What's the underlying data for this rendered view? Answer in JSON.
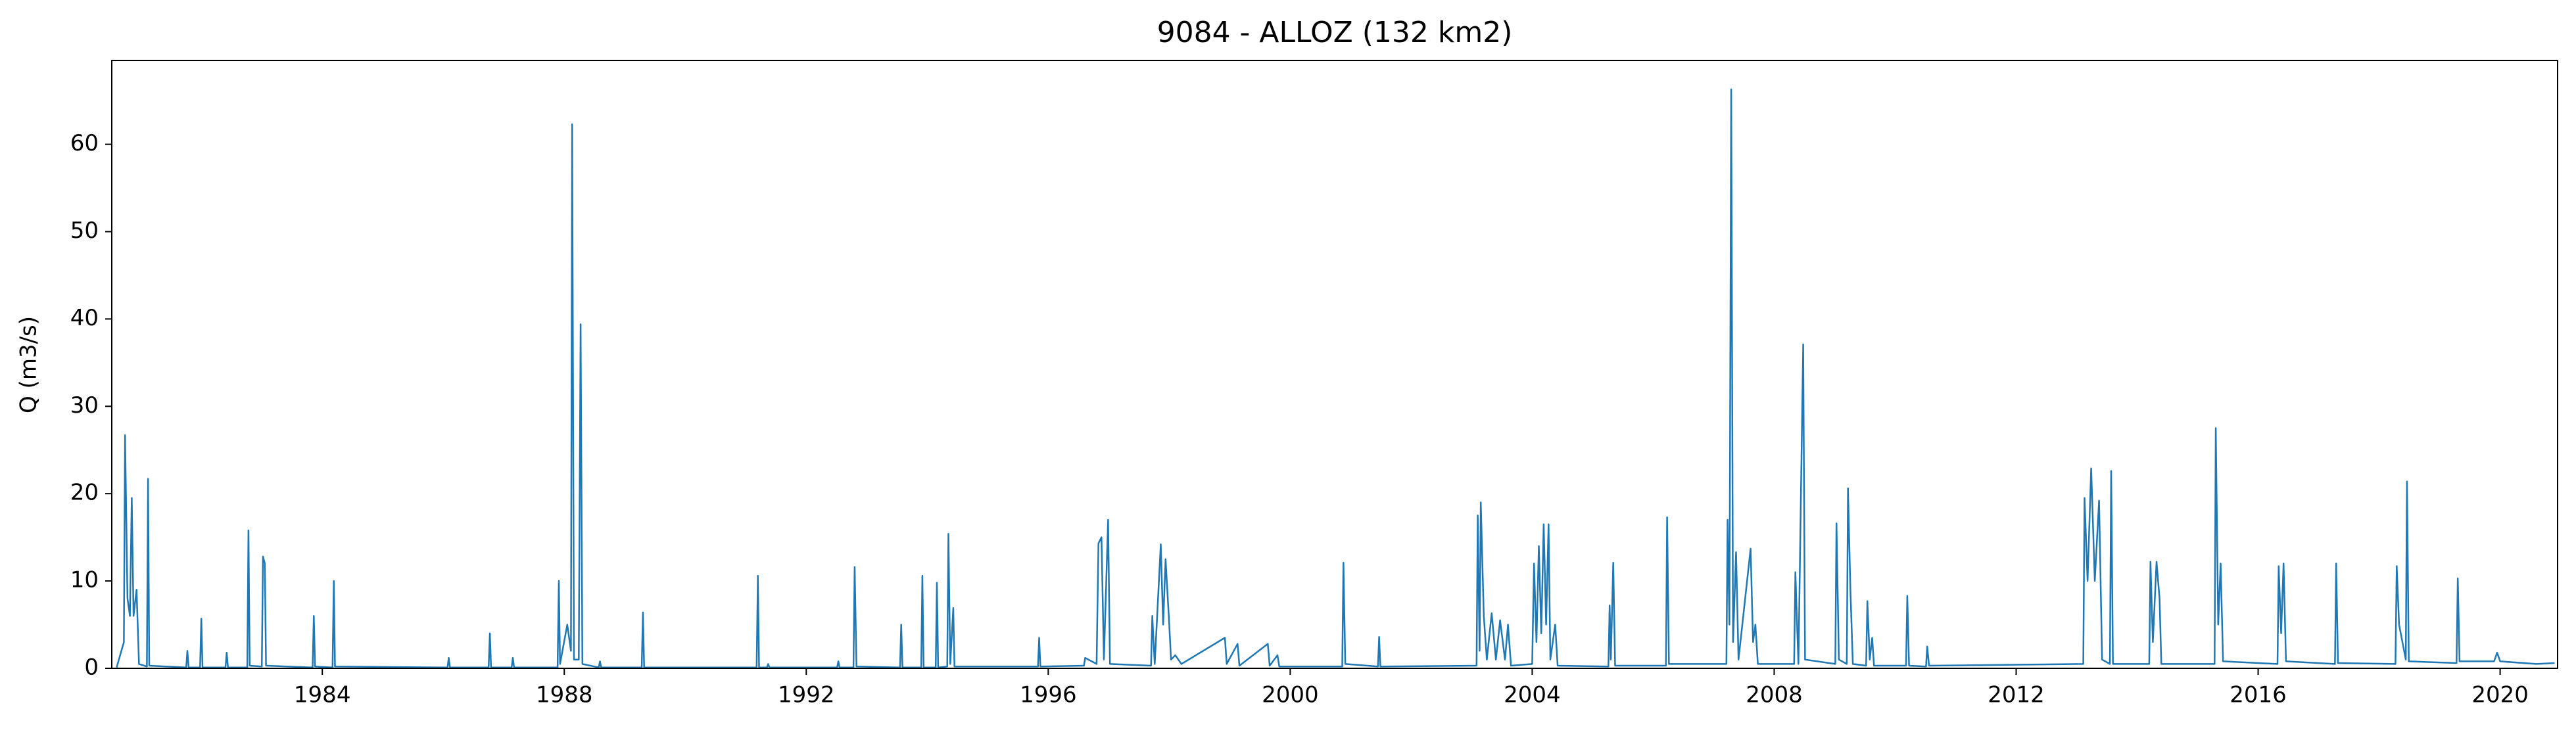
{
  "chart_data": {
    "type": "line",
    "title": "9084 - ALLOZ (132 km2)",
    "y_label": "Q (m3/s)",
    "xlim": [
      1980.52,
      2020.95
    ],
    "xticks": [
      1984,
      1988,
      1992,
      1996,
      2000,
      2004,
      2008,
      2012,
      2016,
      2020
    ],
    "ylim": [
      0,
      69.6
    ],
    "yticks": [
      0,
      10,
      20,
      30,
      40,
      50,
      60
    ],
    "grid": false,
    "series": [
      {
        "color": "#1f77b4",
        "x": [
          1980.6,
          1980.72,
          1980.74,
          1980.78,
          1980.82,
          1980.85,
          1980.88,
          1980.93,
          1980.97,
          1981.1,
          1981.12,
          1981.14,
          1981.75,
          1981.77,
          1981.79,
          1981.98,
          1982.0,
          1982.02,
          1982.4,
          1982.42,
          1982.44,
          1982.76,
          1982.78,
          1982.8,
          1983.0,
          1983.02,
          1983.05,
          1983.07,
          1983.84,
          1983.86,
          1983.88,
          1984.17,
          1984.19,
          1984.21,
          1986.07,
          1986.09,
          1986.11,
          1986.75,
          1986.77,
          1986.79,
          1987.13,
          1987.15,
          1987.17,
          1987.89,
          1987.91,
          1987.93,
          1988.05,
          1988.11,
          1988.13,
          1988.16,
          1988.24,
          1988.27,
          1988.3,
          1988.57,
          1988.59,
          1988.61,
          1989.28,
          1989.3,
          1989.32,
          1991.18,
          1991.2,
          1991.22,
          1991.35,
          1991.37,
          1991.39,
          1992.51,
          1992.53,
          1992.55,
          1992.78,
          1992.8,
          1992.83,
          1993.55,
          1993.57,
          1993.59,
          1993.9,
          1993.92,
          1993.94,
          1994.14,
          1994.16,
          1994.18,
          1994.33,
          1994.35,
          1994.38,
          1994.43,
          1994.45,
          1995.83,
          1995.85,
          1995.87,
          1996.59,
          1996.61,
          1996.8,
          1996.83,
          1996.88,
          1996.92,
          1996.99,
          1997.02,
          1997.7,
          1997.72,
          1997.76,
          1997.86,
          1997.9,
          1997.94,
          1998.0,
          1998.03,
          1998.1,
          1998.2,
          1998.92,
          1998.95,
          1999.13,
          1999.16,
          1999.63,
          1999.66,
          1999.79,
          1999.82,
          2000.86,
          2000.88,
          2000.91,
          2001.45,
          2001.47,
          2001.49,
          2003.08,
          2003.1,
          2003.13,
          2003.15,
          2003.2,
          2003.25,
          2003.33,
          2003.4,
          2003.47,
          2003.55,
          2003.6,
          2003.65,
          2004.0,
          2004.03,
          2004.07,
          2004.11,
          2004.15,
          2004.19,
          2004.23,
          2004.27,
          2004.3,
          2004.38,
          2004.42,
          2005.26,
          2005.28,
          2005.3,
          2005.34,
          2005.37,
          2006.21,
          2006.23,
          2006.26,
          2007.21,
          2007.23,
          2007.26,
          2007.29,
          2007.32,
          2007.37,
          2007.41,
          2007.61,
          2007.65,
          2007.69,
          2007.73,
          2008.33,
          2008.35,
          2008.4,
          2008.48,
          2008.51,
          2009.01,
          2009.03,
          2009.07,
          2009.2,
          2009.22,
          2009.26,
          2009.3,
          2009.52,
          2009.54,
          2009.58,
          2009.62,
          2009.65,
          2010.18,
          2010.2,
          2010.23,
          2010.51,
          2010.53,
          2010.56,
          2013.11,
          2013.13,
          2013.18,
          2013.24,
          2013.3,
          2013.37,
          2013.42,
          2013.55,
          2013.57,
          2013.6,
          2014.2,
          2014.22,
          2014.26,
          2014.32,
          2014.37,
          2014.4,
          2015.28,
          2015.3,
          2015.34,
          2015.38,
          2015.42,
          2016.32,
          2016.34,
          2016.38,
          2016.42,
          2016.46,
          2017.27,
          2017.29,
          2017.32,
          2018.27,
          2018.29,
          2018.33,
          2018.44,
          2018.46,
          2018.49,
          2019.28,
          2019.3,
          2019.33,
          2019.9,
          2019.95,
          2020.0,
          2020.6,
          2020.9
        ],
        "values": [
          0.1,
          3,
          26.7,
          8,
          6,
          19.5,
          6,
          9,
          0.5,
          0.2,
          21.7,
          0.3,
          0.1,
          2,
          0.1,
          0.1,
          5.7,
          0.1,
          0.1,
          1.8,
          0.1,
          0.1,
          15.8,
          0.3,
          0.2,
          12.8,
          12,
          0.3,
          0.1,
          6,
          0.2,
          0.1,
          10,
          0.2,
          0.1,
          1.2,
          0.1,
          0.1,
          4,
          0.1,
          0.1,
          1.2,
          0.1,
          0.1,
          10,
          0.5,
          5,
          2,
          62.3,
          1,
          1,
          39.4,
          0.5,
          0.1,
          0.8,
          0.1,
          0.1,
          6.4,
          0.1,
          0.1,
          10.6,
          0.1,
          0.1,
          0.5,
          0.1,
          0.1,
          0.8,
          0.1,
          0.1,
          11.6,
          0.2,
          0.1,
          5,
          0.1,
          0.1,
          10.6,
          0.1,
          0.1,
          9.8,
          0.1,
          0.2,
          15.4,
          0.5,
          6.9,
          0.2,
          0.2,
          3.5,
          0.2,
          0.3,
          1.2,
          0.5,
          14.3,
          15,
          1,
          17,
          0.5,
          0.3,
          6,
          0.5,
          14.2,
          5,
          12.5,
          5,
          1,
          1.5,
          0.5,
          3.5,
          0.5,
          2.8,
          0.3,
          2.8,
          0.3,
          1.5,
          0.2,
          0.2,
          12.1,
          0.5,
          0.2,
          3.6,
          0.2,
          0.3,
          17.5,
          2,
          19,
          6,
          1,
          6.3,
          1,
          5.5,
          1,
          5,
          0.3,
          0.5,
          12,
          3,
          14,
          4,
          16.5,
          5,
          16.5,
          1,
          5,
          0.3,
          0.2,
          7.2,
          1,
          12.1,
          0.3,
          0.3,
          17.3,
          0.5,
          0.5,
          17,
          5,
          66.3,
          3,
          13.3,
          1,
          13.7,
          3,
          5,
          0.5,
          0.5,
          11,
          0.5,
          37.1,
          1,
          0.5,
          16.6,
          1,
          0.5,
          20.6,
          9,
          0.5,
          0.3,
          7.7,
          1,
          3.5,
          0.3,
          0.3,
          8.3,
          0.3,
          0.2,
          2.5,
          0.3,
          0.5,
          19.5,
          10,
          22.9,
          10,
          19.2,
          1,
          0.5,
          22.6,
          0.5,
          0.5,
          12.2,
          3,
          12.2,
          8,
          0.5,
          0.5,
          27.5,
          5,
          12,
          0.8,
          0.5,
          11.7,
          4,
          12,
          0.8,
          0.5,
          12,
          0.6,
          0.5,
          11.7,
          5,
          1,
          21.4,
          0.8,
          0.6,
          10.3,
          0.8,
          0.8,
          1.8,
          0.8,
          0.5,
          0.6
        ]
      }
    ]
  }
}
